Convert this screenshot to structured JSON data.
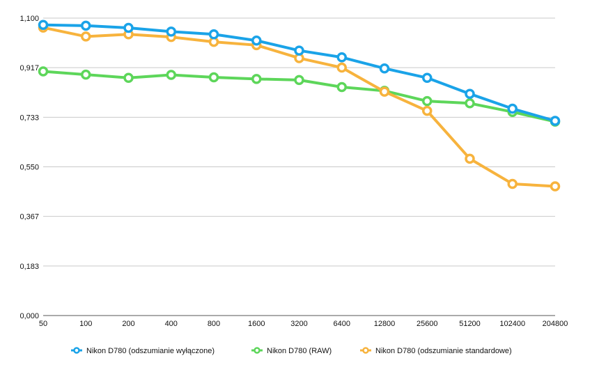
{
  "chart_data": {
    "type": "line",
    "title": "",
    "xlabel": "",
    "ylabel": "",
    "categories": [
      "50",
      "100",
      "200",
      "400",
      "800",
      "1600",
      "3200",
      "6400",
      "12800",
      "25600",
      "51200",
      "102400",
      "204800"
    ],
    "y_ticks": [
      "0,000",
      "0,183",
      "0,367",
      "0,550",
      "0,733",
      "0,917",
      "1,100"
    ],
    "ylim": [
      0,
      1.1
    ],
    "grid": true,
    "legend_position": "bottom",
    "series": [
      {
        "name": "Nikon D780 (odszumianie wyłączone)",
        "color": "#1aa3e8",
        "values": [
          1.075,
          1.072,
          1.064,
          1.05,
          1.04,
          1.017,
          0.98,
          0.955,
          0.914,
          0.879,
          0.82,
          0.765,
          0.72
        ]
      },
      {
        "name": "Nikon D780 (RAW)",
        "color": "#5dd65a",
        "values": [
          0.903,
          0.891,
          0.879,
          0.89,
          0.881,
          0.875,
          0.871,
          0.845,
          0.831,
          0.793,
          0.785,
          0.753,
          0.717
        ]
      },
      {
        "name": "Nikon D780 (odszumianie standardowe)",
        "color": "#f7b33d",
        "values": [
          1.065,
          1.032,
          1.04,
          1.03,
          1.012,
          1.0,
          0.952,
          0.917,
          0.828,
          0.757,
          0.58,
          0.487,
          0.478
        ]
      }
    ]
  }
}
